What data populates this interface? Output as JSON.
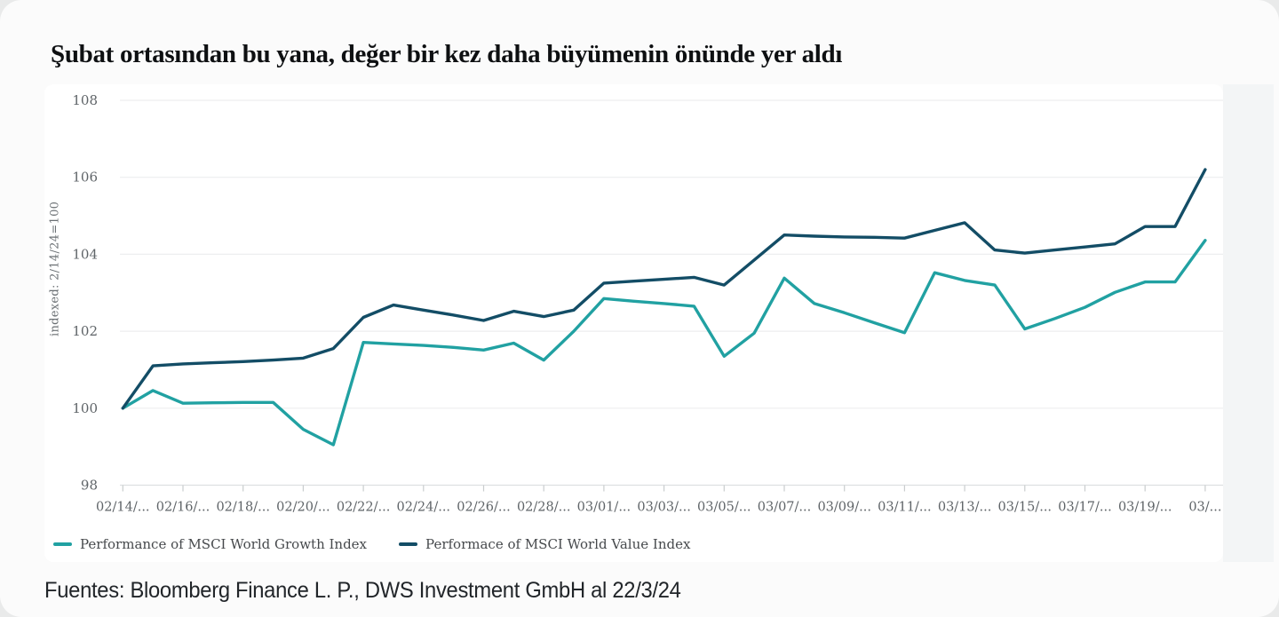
{
  "title": "Şubat ortasından bu yana, değer bir kez daha büyümenin önünde yer aldı",
  "source_note": "Fuentes: Bloomberg Finance L. P., DWS Investment GmbH al 22/3/24",
  "colors": {
    "growth_line": "#21A1A2",
    "value_line": "#134D66",
    "gridline": "#EDEEEF",
    "axis_baseline": "#DDE0E1",
    "tick_mark": "#C9CDCE",
    "axis_text": "#5F6468",
    "legend_text": "#46494C",
    "side_panel": "#F3F5F6",
    "card_bg": "#FFFFFF",
    "page_bg": "#FBFBFB"
  },
  "chart_data": {
    "type": "line",
    "title": "Şubat ortasından bu yana, değer bir kez daha büyümenin önünde yer aldı",
    "xlabel": "",
    "ylabel": "indexed: 2/14/24=100",
    "ylim": [
      98,
      108
    ],
    "y_ticks": [
      98,
      100,
      102,
      104,
      106,
      108
    ],
    "grid": "horizontal-only",
    "legend_position": "bottom-left",
    "x_tick_labels": [
      "02/14/...",
      "02/16/...",
      "02/18/...",
      "02/20/...",
      "02/22/...",
      "02/24/...",
      "02/26/...",
      "02/28/...",
      "03/01/...",
      "03/03/...",
      "03/05/...",
      "03/07/...",
      "03/09/...",
      "03/11/...",
      "03/13/...",
      "03/15/...",
      "03/17/...",
      "03/19/...",
      "03/..."
    ],
    "points_per_tick_interval": 2,
    "series": [
      {
        "name": "Performance of MSCI World Growth Index",
        "color": "#21A1A2",
        "values": [
          100.0,
          100.46,
          100.13,
          100.14,
          100.15,
          100.15,
          99.45,
          99.05,
          101.71,
          101.67,
          101.63,
          101.58,
          101.51,
          101.69,
          101.25,
          102.0,
          102.85,
          102.78,
          102.72,
          102.65,
          101.35,
          101.95,
          103.38,
          102.72,
          102.48,
          102.22,
          101.96,
          103.52,
          103.32,
          103.2,
          102.06,
          102.33,
          102.62,
          103.01,
          103.28,
          103.28,
          104.36
        ]
      },
      {
        "name": "Performace of MSCI World Value Index",
        "color": "#134D66",
        "values": [
          100.0,
          101.1,
          101.15,
          101.18,
          101.21,
          101.25,
          101.3,
          101.55,
          102.36,
          102.68,
          102.55,
          102.42,
          102.28,
          102.52,
          102.38,
          102.55,
          103.25,
          103.3,
          103.35,
          103.4,
          103.2,
          103.85,
          104.5,
          104.47,
          104.45,
          104.44,
          104.42,
          104.62,
          104.82,
          104.11,
          104.03,
          104.11,
          104.19,
          104.27,
          104.72,
          104.72,
          106.2
        ]
      }
    ]
  }
}
